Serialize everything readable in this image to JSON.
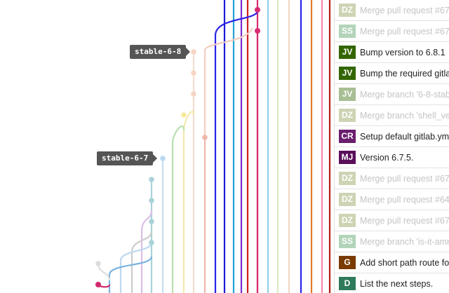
{
  "tags": [
    {
      "label": "stable-6-8"
    },
    {
      "label": "stable-6-7"
    }
  ],
  "commits": [
    {
      "initials": "DZ",
      "message": "Merge pull request #67",
      "color": "#8a9a4f",
      "muted": true
    },
    {
      "initials": "SS",
      "message": "Merge pull request #67",
      "color": "#4a9a5a",
      "muted": true
    },
    {
      "initials": "JV",
      "message": "Bump version to 6.8.1",
      "color": "#336600",
      "muted": false
    },
    {
      "initials": "JV",
      "message": "Bump the required gitla",
      "color": "#336600",
      "muted": false
    },
    {
      "initials": "JV",
      "message": "Merge branch '6-8-stab",
      "color": "#336600",
      "muted": true
    },
    {
      "initials": "DZ",
      "message": "Merge branch 'shell_ve",
      "color": "#8a9a4f",
      "muted": true
    },
    {
      "initials": "CR",
      "message": "Setup default gitlab.yml",
      "color": "#6a1e6e",
      "muted": false
    },
    {
      "initials": "MJ",
      "message": "Version 6.7.5.",
      "color": "#5a0f5a",
      "muted": false
    },
    {
      "initials": "DZ",
      "message": "Merge pull request #67",
      "color": "#8a9a4f",
      "muted": true
    },
    {
      "initials": "DZ",
      "message": "Merge pull request #64",
      "color": "#8a9a4f",
      "muted": true
    },
    {
      "initials": "DZ",
      "message": "Merge pull request #67",
      "color": "#8a9a4f",
      "muted": true
    },
    {
      "initials": "SS",
      "message": "Merge branch 'is-it-amr",
      "color": "#4a9a5a",
      "muted": true
    },
    {
      "initials": "G",
      "message": "Add short path route for",
      "color": "#7a3a00",
      "muted": false
    },
    {
      "initials": "D",
      "message": "List the next steps.",
      "color": "#2e7a5a",
      "muted": false
    }
  ]
}
